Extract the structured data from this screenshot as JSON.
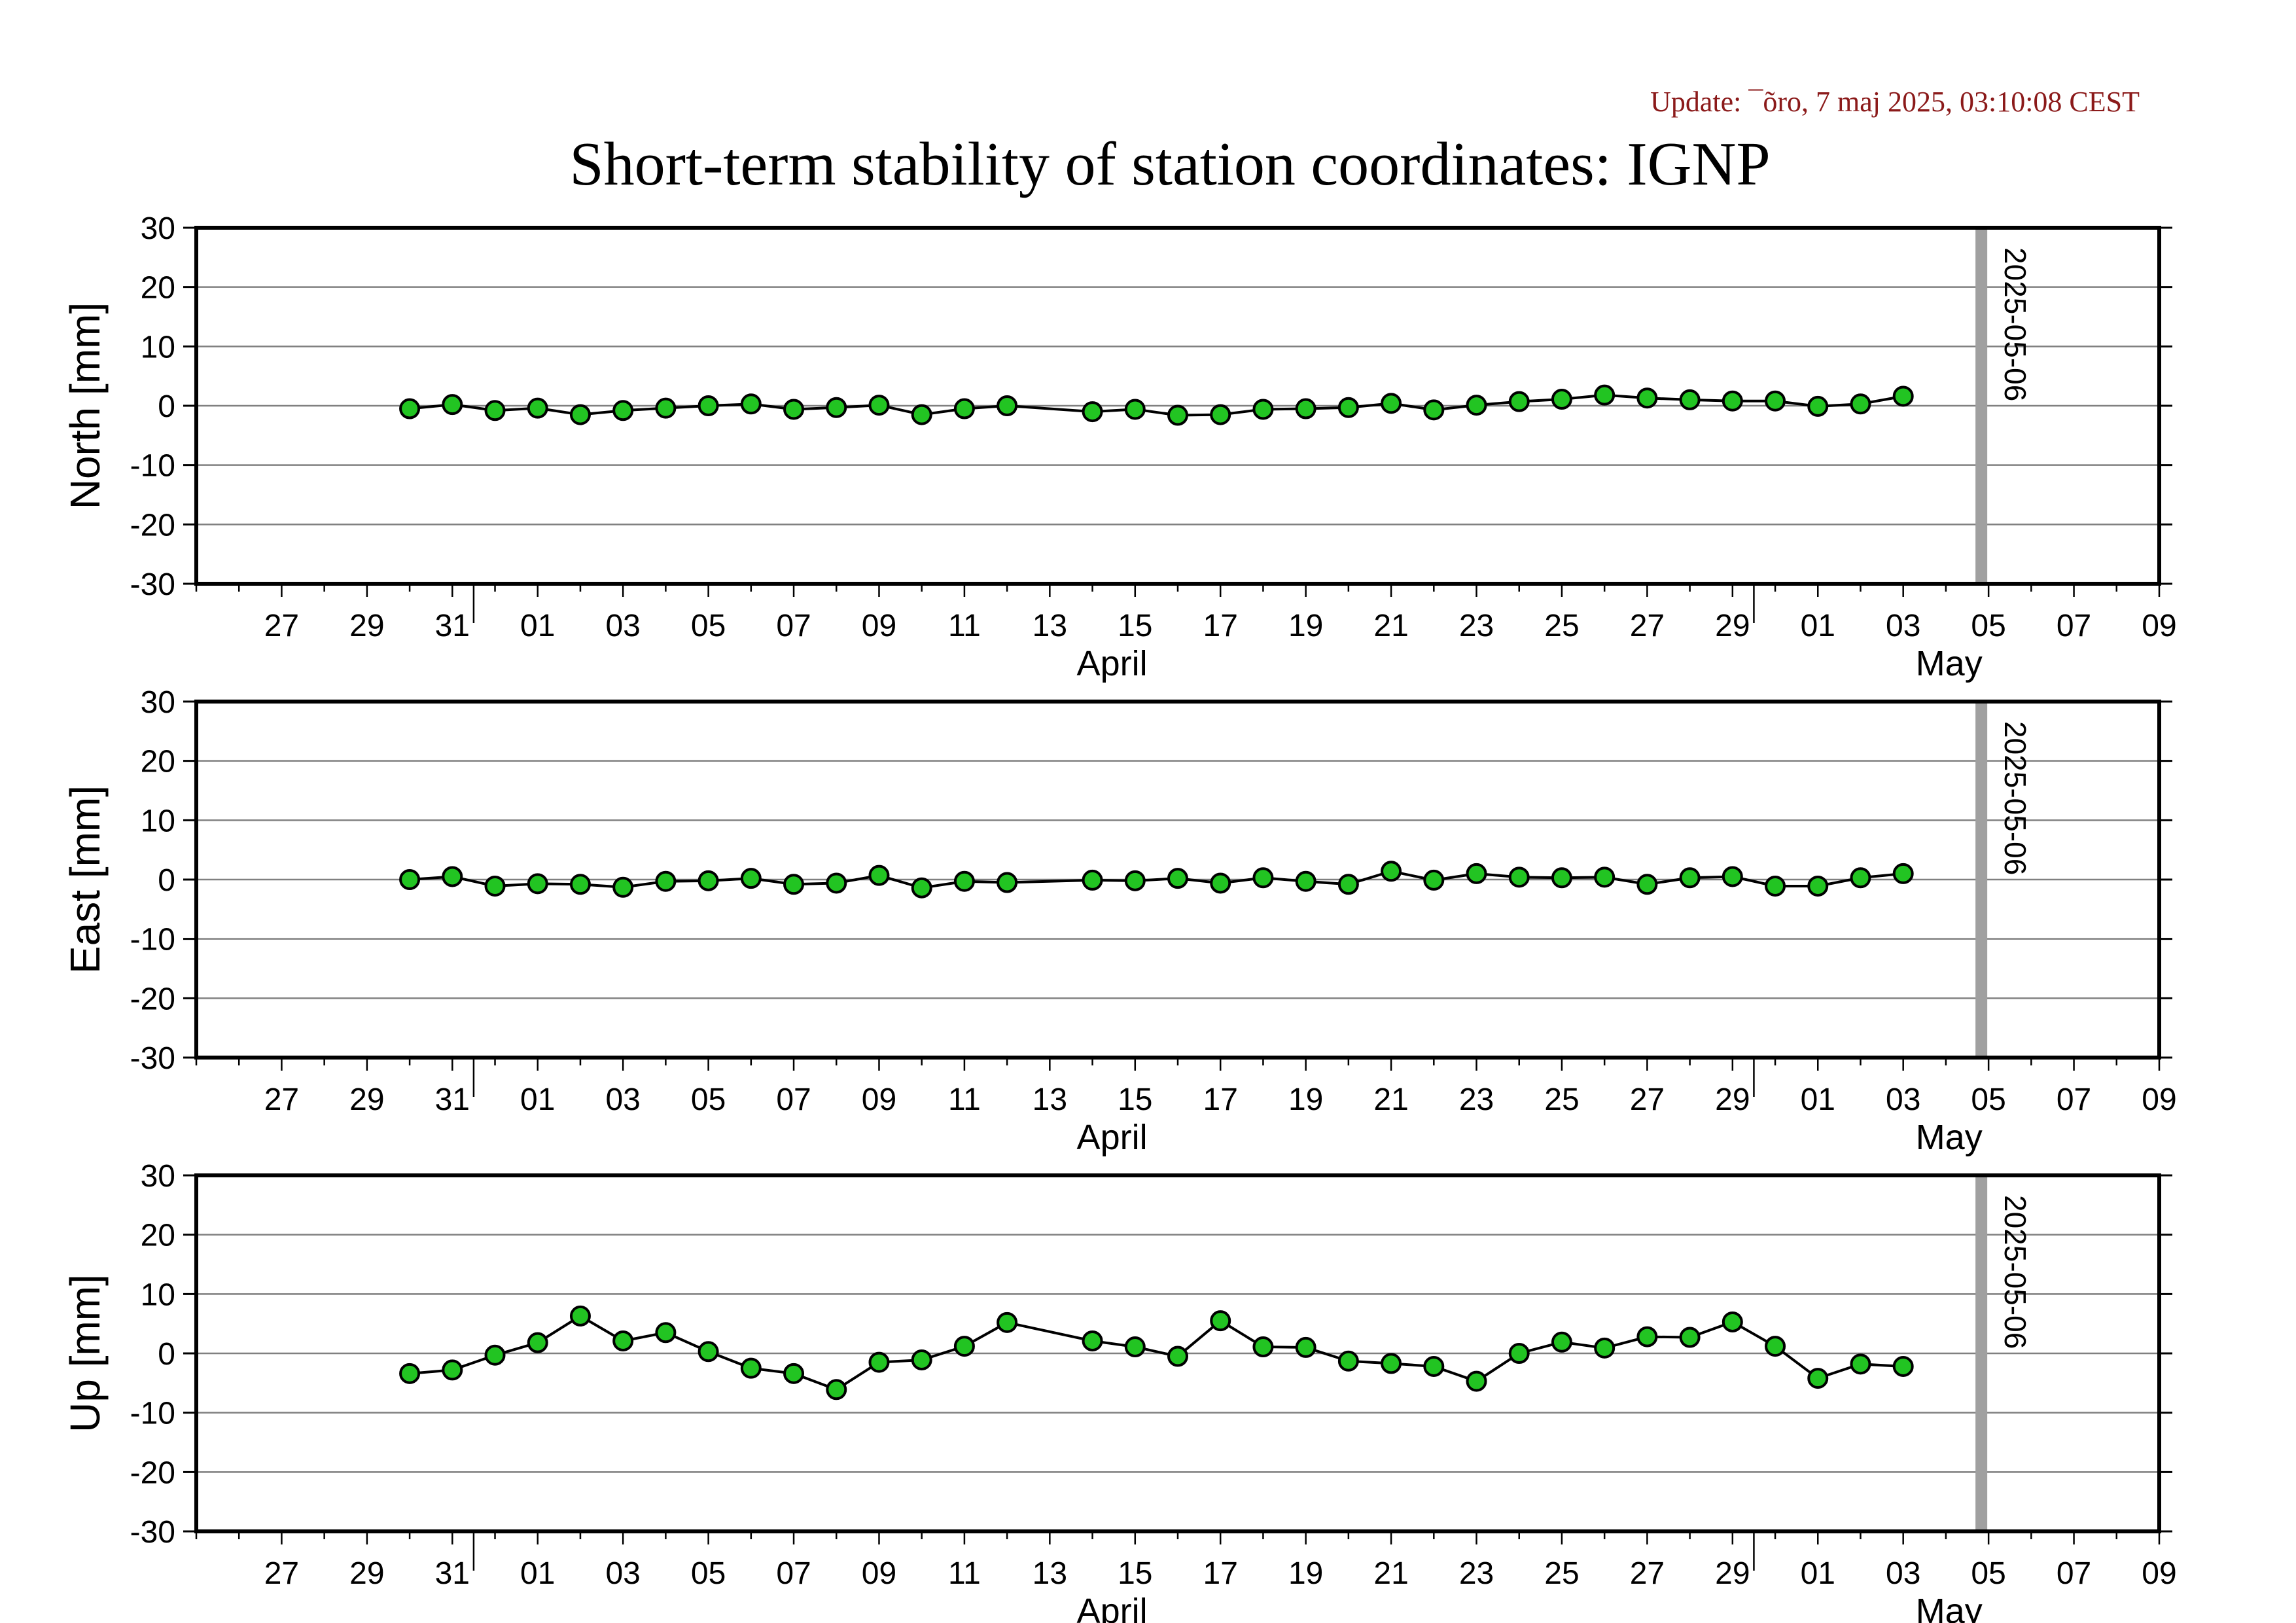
{
  "update_text": "Update: ¯õro, 7 maj 2025, 03:10:08 CEST",
  "title": "Short-term stability of station coordinates: IGNP",
  "colors": {
    "marker": "#22c422",
    "marker_stroke": "#000000",
    "line": "#000000",
    "grid": "#808080",
    "marker_line": "#a0a0a0",
    "update": "#8b1a1a"
  },
  "chart_data": [
    {
      "type": "line",
      "ylabel": "North [mm]",
      "ylim": [
        -30,
        30
      ],
      "yticks": [
        30,
        20,
        10,
        0,
        -10,
        -20,
        -30
      ],
      "x_range": [
        "2025-03-25",
        "2025-05-10"
      ],
      "x_tick_labels": [
        "27",
        "29",
        "31",
        "01",
        "03",
        "05",
        "07",
        "09",
        "11",
        "13",
        "15",
        "17",
        "19",
        "21",
        "23",
        "25",
        "27",
        "29",
        "01",
        "03",
        "05",
        "07",
        "09"
      ],
      "month_labels": [
        "April",
        "May"
      ],
      "grid": true,
      "vline_label": "2025-05-06",
      "x": [
        "2025-03-30",
        "2025-03-31",
        "2025-04-01",
        "2025-04-02",
        "2025-04-03",
        "2025-04-04",
        "2025-04-05",
        "2025-04-06",
        "2025-04-07",
        "2025-04-08",
        "2025-04-09",
        "2025-04-10",
        "2025-04-11",
        "2025-04-12",
        "2025-04-13",
        "2025-04-15",
        "2025-04-16",
        "2025-04-17",
        "2025-04-18",
        "2025-04-19",
        "2025-04-20",
        "2025-04-21",
        "2025-04-22",
        "2025-04-23",
        "2025-04-24",
        "2025-04-25",
        "2025-04-26",
        "2025-04-27",
        "2025-04-28",
        "2025-04-29",
        "2025-04-30",
        "2025-05-01",
        "2025-05-02",
        "2025-05-03",
        "2025-05-04"
      ],
      "values": [
        -0.5,
        0.2,
        -0.8,
        -0.4,
        -1.5,
        -0.8,
        -0.4,
        0,
        0.3,
        -0.6,
        -0.3,
        0.1,
        -1.5,
        -0.5,
        0,
        -1,
        -0.6,
        -1.6,
        -1.5,
        -0.6,
        -0.5,
        -0.3,
        0.4,
        -0.7,
        0.1,
        0.7,
        1.1,
        1.8,
        1.3,
        1.0,
        0.8,
        0.8,
        -0.1,
        0.3,
        1.6
      ]
    },
    {
      "type": "line",
      "ylabel": "East [mm]",
      "ylim": [
        -30,
        30
      ],
      "yticks": [
        30,
        20,
        10,
        0,
        -10,
        -20,
        -30
      ],
      "x_range": [
        "2025-03-25",
        "2025-05-10"
      ],
      "x_tick_labels": [
        "27",
        "29",
        "31",
        "01",
        "03",
        "05",
        "07",
        "09",
        "11",
        "13",
        "15",
        "17",
        "19",
        "21",
        "23",
        "25",
        "27",
        "29",
        "01",
        "03",
        "05",
        "07",
        "09"
      ],
      "month_labels": [
        "April",
        "May"
      ],
      "grid": true,
      "vline_label": "2025-05-06",
      "x": [
        "2025-03-30",
        "2025-03-31",
        "2025-04-01",
        "2025-04-02",
        "2025-04-03",
        "2025-04-04",
        "2025-04-05",
        "2025-04-06",
        "2025-04-07",
        "2025-04-08",
        "2025-04-09",
        "2025-04-10",
        "2025-04-11",
        "2025-04-12",
        "2025-04-13",
        "2025-04-15",
        "2025-04-16",
        "2025-04-17",
        "2025-04-18",
        "2025-04-19",
        "2025-04-20",
        "2025-04-21",
        "2025-04-22",
        "2025-04-23",
        "2025-04-24",
        "2025-04-25",
        "2025-04-26",
        "2025-04-27",
        "2025-04-28",
        "2025-04-29",
        "2025-04-30",
        "2025-05-01",
        "2025-05-02",
        "2025-05-03",
        "2025-05-04"
      ],
      "values": [
        0,
        0.5,
        -1.1,
        -0.7,
        -0.8,
        -1.3,
        -0.3,
        -0.2,
        0.2,
        -0.8,
        -0.6,
        0.7,
        -1.4,
        -0.3,
        -0.5,
        -0.1,
        -0.2,
        0.2,
        -0.6,
        0.3,
        -0.3,
        -0.8,
        1.4,
        -0.1,
        1.0,
        0.4,
        0.3,
        0.4,
        -0.8,
        0.3,
        0.5,
        -1.1,
        -1.1,
        0.3,
        1.0
      ]
    },
    {
      "type": "line",
      "ylabel": "Up [mm]",
      "ylim": [
        -30,
        30
      ],
      "yticks": [
        30,
        20,
        10,
        0,
        -10,
        -20,
        -30
      ],
      "x_range": [
        "2025-03-25",
        "2025-05-10"
      ],
      "x_tick_labels": [
        "27",
        "29",
        "31",
        "01",
        "03",
        "05",
        "07",
        "09",
        "11",
        "13",
        "15",
        "17",
        "19",
        "21",
        "23",
        "25",
        "27",
        "29",
        "01",
        "03",
        "05",
        "07",
        "09"
      ],
      "month_labels": [
        "April",
        "May"
      ],
      "grid": true,
      "vline_label": "2025-05-06",
      "x": [
        "2025-03-30",
        "2025-03-31",
        "2025-04-01",
        "2025-04-02",
        "2025-04-03",
        "2025-04-04",
        "2025-04-05",
        "2025-04-06",
        "2025-04-07",
        "2025-04-08",
        "2025-04-09",
        "2025-04-10",
        "2025-04-11",
        "2025-04-12",
        "2025-04-13",
        "2025-04-15",
        "2025-04-16",
        "2025-04-17",
        "2025-04-18",
        "2025-04-19",
        "2025-04-20",
        "2025-04-21",
        "2025-04-22",
        "2025-04-23",
        "2025-04-24",
        "2025-04-25",
        "2025-04-26",
        "2025-04-27",
        "2025-04-28",
        "2025-04-29",
        "2025-04-30",
        "2025-05-01",
        "2025-05-02",
        "2025-05-03",
        "2025-05-04"
      ],
      "values": [
        -3.4,
        -2.8,
        -0.3,
        1.8,
        6.3,
        2.1,
        3.5,
        0.3,
        -2.5,
        -3.4,
        -6.1,
        -1.5,
        -1.1,
        1.2,
        5.2,
        2.1,
        1.1,
        -0.5,
        5.5,
        1.1,
        1.0,
        -1.3,
        -1.7,
        -2.2,
        -4.7,
        0,
        1.9,
        0.9,
        2.8,
        2.7,
        5.3,
        1.2,
        -4.2,
        -1.8,
        -2.2
      ]
    }
  ]
}
